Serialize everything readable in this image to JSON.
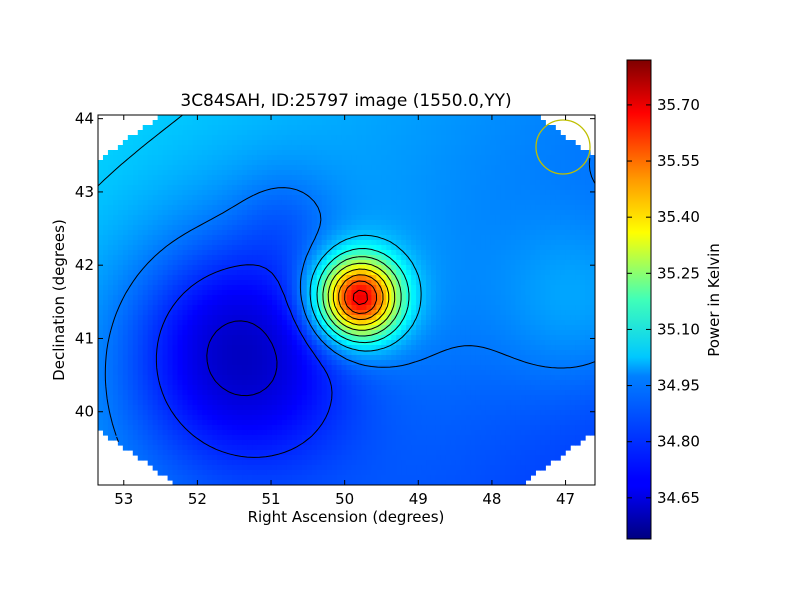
{
  "chart_data": {
    "type": "heatmap",
    "title": "3C84SAH, ID:25797 image (1550.0,YY)",
    "xlabel": "Right Ascension (degrees)",
    "ylabel": "Declination (degrees)",
    "xlim": [
      53.35,
      46.6
    ],
    "ylim": [
      39.0,
      44.05
    ],
    "x_ticks": [
      53,
      52,
      51,
      50,
      49,
      48,
      47
    ],
    "y_ticks": [
      40,
      41,
      42,
      43,
      44
    ],
    "colorbar": {
      "label": "Power in Kelvin",
      "range": [
        34.54,
        35.82
      ],
      "ticks": [
        34.65,
        34.8,
        34.95,
        35.1,
        35.25,
        35.4,
        35.55,
        35.7
      ],
      "tick_labels": [
        "34.65",
        "34.80",
        "34.95",
        "35.10",
        "35.25",
        "35.40",
        "35.55",
        "35.70"
      ],
      "colormap": "jet"
    },
    "peak": {
      "ra": 49.8,
      "dec": 41.55,
      "value": 35.78
    },
    "minimum": {
      "ra": 51.4,
      "dec": 40.85,
      "value": 34.58
    },
    "background_level": 34.88,
    "contour_levels": [
      34.65,
      34.75,
      34.85,
      34.95,
      35.05,
      35.15,
      35.25,
      35.35,
      35.45,
      35.55,
      35.65,
      35.75
    ],
    "beam_marker": {
      "ra": 47.05,
      "dec": 43.55,
      "color": "#bfbf00"
    },
    "grid": false
  }
}
